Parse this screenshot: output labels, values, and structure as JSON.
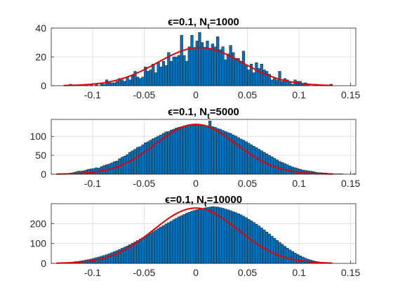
{
  "figure": {
    "background": "#ffffff",
    "bar_color": "#0072BD",
    "bar_edge_color": "#1a1a1a",
    "fit_color": "#e60000",
    "grid": true,
    "grid_color": "#dcdcdc"
  },
  "chart_data": [
    {
      "type": "bar",
      "title_prefix": "ϵ=0.1, N",
      "title_sub": "t",
      "title_suffix": "=1000",
      "xlim": [
        -0.14,
        0.155
      ],
      "ylim": [
        0,
        40
      ],
      "xticks": [
        "-0.1",
        "-0.05",
        "0",
        "0.05",
        "0.1",
        "0.15"
      ],
      "xtick_values": [
        -0.1,
        -0.05,
        0,
        0.05,
        0.1,
        0.15
      ],
      "yticks": [
        "0",
        "20",
        "40"
      ],
      "ytick_values": [
        0,
        20,
        40
      ],
      "bins": {
        "start": -0.1225,
        "width": 0.0025,
        "counts": [
          1,
          0,
          0,
          0,
          0,
          0,
          1,
          0,
          1,
          0,
          1,
          0,
          2,
          1,
          4,
          2,
          2,
          2,
          3,
          5,
          4,
          3,
          6,
          4,
          7,
          10,
          6,
          5,
          6,
          13,
          10,
          11,
          15,
          9,
          16,
          13,
          17,
          14,
          23,
          17,
          20,
          20,
          21,
          35,
          21,
          17,
          27,
          35,
          26,
          31,
          37,
          30,
          26,
          31,
          26,
          29,
          27,
          34,
          25,
          27,
          18,
          22,
          28,
          23,
          19,
          19,
          17,
          24,
          14,
          11,
          15,
          9,
          16,
          12,
          15,
          11,
          10,
          8,
          4,
          5,
          4,
          10,
          3,
          5,
          4,
          3,
          1,
          4,
          3,
          3,
          1,
          2,
          1,
          0,
          0,
          1,
          0,
          0,
          0,
          0,
          0,
          1
        ]
      },
      "fit": {
        "type": "normal",
        "mu": 0.004,
        "sigma": 0.041,
        "peak": 26.5,
        "x_range": [
          -0.128,
          0.132
        ]
      }
    },
    {
      "type": "bar",
      "title_prefix": "ϵ=0.1, N",
      "title_sub": "t",
      "title_suffix": "=5000",
      "xlim": [
        -0.14,
        0.155
      ],
      "ylim": [
        0,
        145
      ],
      "xticks": [
        "-0.1",
        "-0.05",
        "0",
        "0.05",
        "0.1",
        "0.15"
      ],
      "xtick_values": [
        -0.1,
        -0.05,
        0,
        0.05,
        0.1,
        0.15
      ],
      "yticks": [
        "0",
        "50",
        "100"
      ],
      "ytick_values": [
        0,
        50,
        100
      ],
      "bins": {
        "start": -0.1325,
        "width": 0.0025,
        "counts": [
          1,
          1,
          2,
          1,
          3,
          4,
          6,
          8,
          8,
          9,
          11,
          13,
          14,
          15,
          17,
          16,
          20,
          23,
          25,
          27,
          30,
          33,
          35,
          41,
          45,
          48,
          52,
          58,
          62,
          66,
          71,
          73,
          78,
          83,
          86,
          90,
          94,
          97,
          101,
          104,
          108,
          112,
          113,
          117,
          119,
          122,
          124,
          126,
          128,
          129,
          130,
          131,
          130,
          132,
          131,
          130,
          129,
          128,
          141,
          126,
          124,
          121,
          119,
          116,
          113,
          110,
          108,
          104,
          101,
          97,
          93,
          90,
          86,
          82,
          78,
          74,
          70,
          66,
          62,
          58,
          54,
          50,
          46,
          42,
          38,
          34,
          31,
          28,
          25,
          22,
          19,
          17,
          15,
          13,
          11,
          10,
          9,
          8,
          7,
          5,
          4,
          4,
          3,
          3,
          2,
          2,
          1,
          1,
          1,
          1,
          0,
          0,
          0,
          0,
          1
        ]
      },
      "fit": {
        "type": "normal",
        "mu": 0.0,
        "sigma": 0.039,
        "peak": 132,
        "x_range": [
          -0.135,
          0.133
        ]
      }
    },
    {
      "type": "bar",
      "title_prefix": "ϵ=0.1, N",
      "title_sub": "t",
      "title_suffix": "=10000",
      "xlim": [
        -0.14,
        0.155
      ],
      "ylim": [
        0,
        300
      ],
      "xticks": [
        "-0.1",
        "-0.05",
        "0",
        "0.05",
        "0.1",
        "0.15"
      ],
      "xtick_values": [
        -0.1,
        -0.05,
        0,
        0.05,
        0.1,
        0.15
      ],
      "yticks": [
        "0",
        "100",
        "200"
      ],
      "ytick_values": [
        0,
        100,
        200
      ],
      "bins": {
        "start": -0.135,
        "width": 0.0025,
        "counts": [
          1,
          2,
          2,
          3,
          4,
          5,
          7,
          9,
          10,
          12,
          14,
          17,
          19,
          22,
          25,
          29,
          32,
          36,
          40,
          44,
          49,
          54,
          59,
          64,
          70,
          76,
          82,
          88,
          94,
          101,
          108,
          115,
          122,
          129,
          137,
          144,
          152,
          160,
          167,
          175,
          183,
          190,
          198,
          205,
          212,
          220,
          227,
          234,
          240,
          246,
          252,
          257,
          262,
          266,
          270,
          273,
          276,
          279,
          281,
          283,
          285,
          284,
          283,
          280,
          277,
          273,
          269,
          265,
          260,
          255,
          250,
          244,
          237,
          230,
          222,
          214,
          206,
          197,
          188,
          178,
          168,
          158,
          148,
          137,
          126,
          116,
          106,
          96,
          86,
          77,
          68,
          60,
          52,
          45,
          38,
          32,
          26,
          21,
          17,
          13,
          10,
          8,
          6,
          4,
          3,
          2,
          1
        ]
      },
      "fit": {
        "type": "normal",
        "mu": 0.0,
        "sigma": 0.041,
        "peak": 278,
        "x_range": [
          -0.135,
          0.132
        ]
      }
    }
  ]
}
